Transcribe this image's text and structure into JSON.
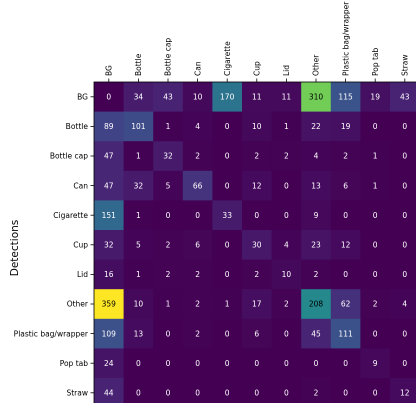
{
  "chart_data": {
    "type": "heatmap",
    "colormap": "viridis",
    "ylabel": "Detections",
    "x_categories": [
      "BG",
      "Bottle",
      "Bottle cap",
      "Can",
      "Cigarette",
      "Cup",
      "Lid",
      "Other",
      "Plastic bag/wrapper",
      "Pop tab",
      "Straw"
    ],
    "y_categories": [
      "BG",
      "Bottle",
      "Bottle cap",
      "Can",
      "Cigarette",
      "Cup",
      "Lid",
      "Other",
      "Plastic bag/wrapper",
      "Pop tab",
      "Straw"
    ],
    "values": [
      [
        0,
        34,
        43,
        10,
        170,
        11,
        11,
        310,
        115,
        19,
        43
      ],
      [
        89,
        101,
        1,
        4,
        0,
        10,
        1,
        22,
        19,
        0,
        0
      ],
      [
        47,
        1,
        32,
        2,
        0,
        2,
        2,
        4,
        2,
        1,
        0
      ],
      [
        47,
        32,
        5,
        66,
        0,
        12,
        0,
        13,
        6,
        1,
        0
      ],
      [
        151,
        1,
        0,
        0,
        33,
        0,
        0,
        9,
        0,
        0,
        0
      ],
      [
        32,
        5,
        2,
        6,
        0,
        30,
        4,
        23,
        12,
        0,
        0
      ],
      [
        16,
        1,
        2,
        2,
        0,
        2,
        10,
        2,
        0,
        0,
        0
      ],
      [
        359,
        10,
        1,
        2,
        1,
        17,
        2,
        208,
        62,
        2,
        4
      ],
      [
        109,
        13,
        0,
        2,
        0,
        6,
        0,
        45,
        111,
        0,
        0
      ],
      [
        24,
        0,
        0,
        0,
        0,
        0,
        0,
        0,
        0,
        9,
        0
      ],
      [
        44,
        0,
        0,
        0,
        0,
        0,
        0,
        2,
        0,
        0,
        12
      ]
    ],
    "vmin": 0,
    "vmax": 359,
    "grid": false
  }
}
